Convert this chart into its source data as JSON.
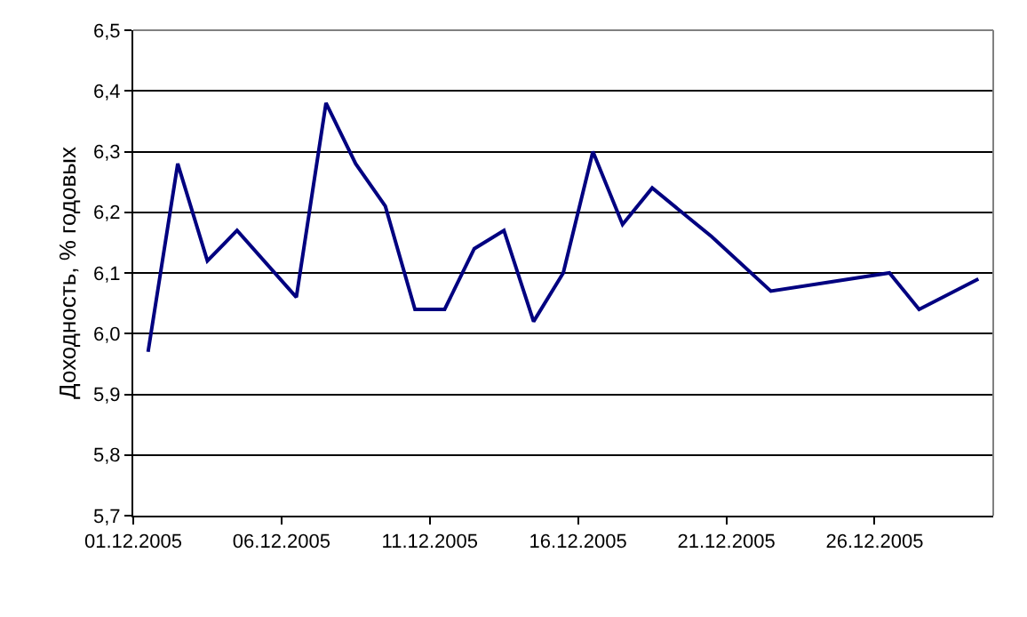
{
  "chart_data": {
    "type": "line",
    "ylabel": "Доходность, % годовых",
    "x": [
      "2005-12-01T12:00",
      "2005-12-02T12:00",
      "2005-12-03T12:00",
      "2005-12-04T12:00",
      "2005-12-06T12:00",
      "2005-12-07T12:00",
      "2005-12-08T12:00",
      "2005-12-09T12:00",
      "2005-12-10T12:00",
      "2005-12-11T12:00",
      "2005-12-12T12:00",
      "2005-12-13T12:00",
      "2005-12-14T12:00",
      "2005-12-15T12:00",
      "2005-12-16T12:00",
      "2005-12-17T12:00",
      "2005-12-18T12:00",
      "2005-12-20T12:00",
      "2005-12-22T12:00",
      "2005-12-26T12:00",
      "2005-12-27T12:00",
      "2005-12-29T12:00"
    ],
    "series": [
      {
        "color": "#000080",
        "values": [
          5.97,
          6.28,
          6.12,
          6.17,
          6.06,
          6.38,
          6.28,
          6.21,
          6.04,
          6.04,
          6.14,
          6.17,
          6.02,
          6.1,
          6.3,
          6.18,
          6.24,
          6.16,
          6.07,
          6.1,
          6.04,
          6.09
        ]
      }
    ],
    "xlim": [
      "2005-12-01",
      "2005-12-30"
    ],
    "xticks": [
      {
        "value": "2005-12-01",
        "label": "01.12.2005"
      },
      {
        "value": "2005-12-06",
        "label": "06.12.2005"
      },
      {
        "value": "2005-12-11",
        "label": "11.12.2005"
      },
      {
        "value": "2005-12-16",
        "label": "16.12.2005"
      },
      {
        "value": "2005-12-21",
        "label": "21.12.2005"
      },
      {
        "value": "2005-12-26",
        "label": "26.12.2005"
      }
    ],
    "ylim": [
      5.7,
      6.5
    ],
    "yticks": [
      {
        "value": 5.7,
        "label": "5,7"
      },
      {
        "value": 5.8,
        "label": "5,8"
      },
      {
        "value": 5.9,
        "label": "5,9"
      },
      {
        "value": 6.0,
        "label": "6,0"
      },
      {
        "value": 6.1,
        "label": "6,1"
      },
      {
        "value": 6.2,
        "label": "6,2"
      },
      {
        "value": 6.3,
        "label": "6,3"
      },
      {
        "value": 6.4,
        "label": "6,4"
      },
      {
        "value": 6.5,
        "label": "6,5"
      }
    ],
    "grid": "y",
    "marker": "none",
    "line_style": "solid"
  }
}
